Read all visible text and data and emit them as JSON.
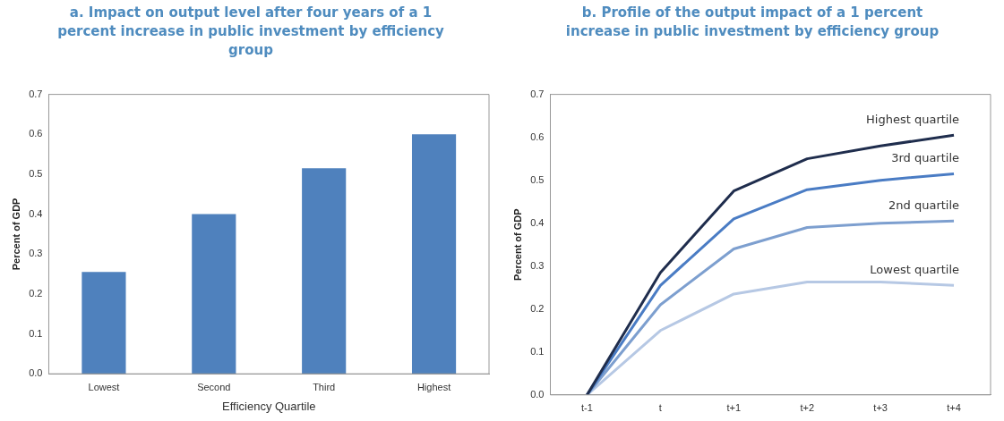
{
  "chart_data": [
    {
      "type": "bar",
      "title": "a.  Impact on output level after four years of a 1 percent increase in public investment by efficiency group",
      "xlabel": "Efficiency Quartile",
      "ylabel": "Percent of GDP",
      "categories": [
        "Lowest",
        "Second",
        "Third",
        "Highest"
      ],
      "values": [
        0.255,
        0.4,
        0.515,
        0.6
      ],
      "color": "#4f81bd",
      "ylim": [
        0,
        0.7
      ],
      "yticks": [
        {
          "value": 0,
          "label": "0.0"
        },
        0.1,
        0.2,
        0.3,
        0.4,
        0.5,
        0.6,
        0.7
      ],
      "grid": false,
      "legend": false
    },
    {
      "type": "line",
      "title": "b.   Profile of the output impact of a 1 percent increase in public investment by efficiency group",
      "ylabel": "Percent of GDP",
      "categories": [
        "t-1",
        "t",
        "t+1",
        "t+2",
        "t+3",
        "t+4"
      ],
      "ylim": [
        0,
        0.7
      ],
      "yticks": [
        {
          "value": 0,
          "label": "0.0"
        },
        0.1,
        0.2,
        0.3,
        0.4,
        0.5,
        0.6,
        0.7
      ],
      "grid": false,
      "legend": false,
      "marker": "none",
      "series": [
        {
          "name": "Highest quartile",
          "color": "#1f2d4d",
          "values": [
            0,
            0.285,
            0.475,
            0.55,
            0.58,
            0.605
          ]
        },
        {
          "name": "3rd quartile",
          "color": "#4a7cc4",
          "values": [
            0,
            0.255,
            0.41,
            0.478,
            0.5,
            0.515
          ]
        },
        {
          "name": "2nd quartile",
          "color": "#7d9fcf",
          "values": [
            0,
            0.21,
            0.34,
            0.39,
            0.4,
            0.405
          ]
        },
        {
          "name": "Lowest quartile",
          "color": "#b6c8e4",
          "values": [
            0,
            0.15,
            0.235,
            0.263,
            0.263,
            0.255
          ]
        }
      ]
    }
  ]
}
